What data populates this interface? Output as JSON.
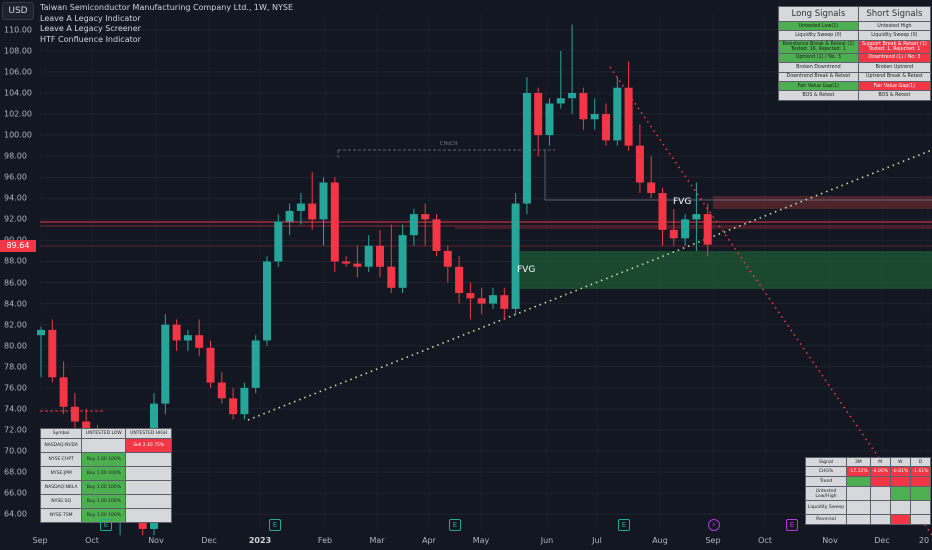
{
  "toolbar": {
    "currency": "USD"
  },
  "legend": {
    "title": "Taiwan Semiconductor Manufacturing Company Ltd., 1W, NYSE",
    "indicators": [
      "Leave A Legacy Indicator",
      "Leave A Legacy Screener",
      "HTF Confluence Indicator"
    ]
  },
  "price_axis": {
    "ticks": [
      "110.00",
      "108.00",
      "106.00",
      "104.00",
      "102.00",
      "100.00",
      "98.00",
      "96.00",
      "94.00",
      "92.00",
      "90.00",
      "88.00",
      "86.00",
      "84.00",
      "82.00",
      "80.00",
      "78.00",
      "76.00",
      "74.00",
      "72.00",
      "70.00",
      "68.00",
      "66.00",
      "64.00"
    ],
    "current_price": "89.64",
    "current_color": "#f23645"
  },
  "time_axis": {
    "labels": [
      "Sep",
      "Oct",
      "Nov",
      "Dec",
      "2023",
      "Feb",
      "Mar",
      "Apr",
      "May",
      "Jun",
      "Jul",
      "Aug",
      "Sep",
      "Oct",
      "Nov",
      "Dec",
      "20"
    ]
  },
  "annotations": {
    "fvg_upper": "FVG",
    "fvg_lower": "FVG",
    "level_note": "CHoCH"
  },
  "colors": {
    "up": "#26a69a",
    "down": "#f23645",
    "background": "#131722"
  },
  "events": [
    "E",
    "E",
    "E",
    "E",
    "E"
  ],
  "signals_table": {
    "headers": [
      "Long Signals",
      "Short Signals"
    ],
    "rows": [
      {
        "long": "Untested Low(1)",
        "long_state": "g",
        "short": "Untested High",
        "short_state": ""
      },
      {
        "long": "Liquidity Sweep (0)",
        "long_state": "",
        "short": "Liquidity Sweep (0)",
        "short_state": ""
      },
      {
        "long": "Resistance Break & Retest (2) Tested: 16, Rejected: 1",
        "long_state": "g",
        "short": "Support Break & Retest (1) Tested: 1, Rejected: 1",
        "short_state": "r"
      },
      {
        "long": "Uptrend (1) / No: 3",
        "long_state": "g",
        "short": "Downtrend (1) / No: 3",
        "short_state": "r"
      },
      {
        "long": "Broken Downtrend",
        "long_state": "",
        "short": "Broken Uptrend",
        "short_state": ""
      },
      {
        "long": "Downtrend Break & Retest",
        "long_state": "",
        "short": "Uptrend Break & Retest",
        "short_state": ""
      },
      {
        "long": "Fair Value Gap(1)",
        "long_state": "g",
        "short": "Fair Value Gap(1)",
        "short_state": "r"
      },
      {
        "long": "BOS & Retest",
        "long_state": "",
        "short": "BOS & Retest",
        "short_state": ""
      }
    ]
  },
  "screener_table": {
    "headers": [
      "Symbol",
      "UNTESTED LOW",
      "UNTESTED HIGH"
    ],
    "rows": [
      {
        "symbol": "NASDAQ:NVDA",
        "low": "",
        "low_state": "",
        "high": "Sell 2.40 75%",
        "high_state": "r"
      },
      {
        "symbol": "NYSE:CHPT",
        "low": "Buy 1.00 100%",
        "low_state": "g",
        "high": "",
        "high_state": ""
      },
      {
        "symbol": "NYSE:JPM",
        "low": "Buy 1.00 100%",
        "low_state": "g",
        "high": "",
        "high_state": ""
      },
      {
        "symbol": "NASDAQ:NKLA",
        "low": "Buy 1.00 100%",
        "low_state": "g",
        "high": "",
        "high_state": ""
      },
      {
        "symbol": "NYSE:SQ",
        "low": "Buy 1.00 100%",
        "low_state": "g",
        "high": "",
        "high_state": ""
      },
      {
        "symbol": "NYSE:TSM",
        "low": "Buy 1.00 100%",
        "low_state": "g",
        "high": "",
        "high_state": ""
      }
    ]
  },
  "htf_table": {
    "headers": [
      "Signal",
      "3M",
      "M",
      "W",
      "D"
    ],
    "rows": [
      {
        "label": "CHG%",
        "cells": [
          {
            "t": "-17.12%",
            "s": "r"
          },
          {
            "t": "-4.00%",
            "s": "r"
          },
          {
            "t": "-0.81%",
            "s": "r"
          },
          {
            "t": "-1.61%",
            "s": "r"
          }
        ]
      },
      {
        "label": "Trend",
        "cells": [
          {
            "t": "",
            "s": "g"
          },
          {
            "t": "",
            "s": "r"
          },
          {
            "t": "",
            "s": "r"
          },
          {
            "t": "",
            "s": "r"
          }
        ]
      },
      {
        "label": "Untested Low/High",
        "cells": [
          {
            "t": "",
            "s": ""
          },
          {
            "t": "",
            "s": ""
          },
          {
            "t": "",
            "s": "g"
          },
          {
            "t": "",
            "s": "g"
          }
        ]
      },
      {
        "label": "Liquidity Sweep",
        "cells": [
          {
            "t": "",
            "s": ""
          },
          {
            "t": "",
            "s": ""
          },
          {
            "t": "",
            "s": ""
          },
          {
            "t": "",
            "s": ""
          }
        ]
      },
      {
        "label": "Reversal",
        "cells": [
          {
            "t": "",
            "s": ""
          },
          {
            "t": "",
            "s": ""
          },
          {
            "t": "",
            "s": "r"
          },
          {
            "t": "",
            "s": ""
          }
        ]
      }
    ]
  },
  "chart_data": {
    "type": "candlestick",
    "title": "Taiwan Semiconductor Manufacturing Company Ltd., 1W, NYSE",
    "ylim": [
      62.5,
      111.5
    ],
    "candles": [
      [
        81.0,
        81.8,
        77.0,
        81.5
      ],
      [
        81.5,
        82.5,
        76.5,
        77.0
      ],
      [
        77.0,
        78.5,
        73.5,
        74.2
      ],
      [
        74.2,
        75.5,
        72.0,
        72.8
      ],
      [
        72.8,
        74.0,
        70.5,
        71.0
      ],
      [
        71.0,
        72.5,
        67.5,
        68.0
      ],
      [
        68.0,
        69.5,
        63.5,
        64.2
      ],
      [
        64.2,
        66.0,
        62.0,
        65.0
      ],
      [
        65.0,
        68.5,
        63.5,
        67.5
      ],
      [
        67.5,
        70.5,
        62.0,
        62.6
      ],
      [
        62.6,
        75.5,
        62.0,
        74.5
      ],
      [
        74.5,
        83.0,
        73.5,
        82.0
      ],
      [
        82.0,
        82.5,
        79.5,
        80.5
      ],
      [
        80.5,
        81.5,
        79.5,
        81.0
      ],
      [
        81.0,
        82.5,
        79.0,
        79.8
      ],
      [
        79.8,
        80.5,
        76.0,
        76.5
      ],
      [
        76.5,
        77.5,
        74.5,
        75.0
      ],
      [
        75.0,
        76.0,
        73.0,
        73.5
      ],
      [
        73.5,
        76.5,
        73.0,
        76.0
      ],
      [
        76.0,
        81.0,
        75.5,
        80.5
      ],
      [
        80.5,
        88.5,
        80.0,
        88.0
      ],
      [
        88.0,
        92.5,
        87.5,
        91.8
      ],
      [
        91.8,
        93.5,
        90.5,
        92.8
      ],
      [
        92.8,
        94.5,
        91.5,
        93.5
      ],
      [
        93.5,
        96.5,
        91.0,
        92.0
      ],
      [
        92.0,
        96.0,
        89.5,
        95.5
      ],
      [
        95.5,
        96.0,
        87.0,
        88.0
      ],
      [
        88.0,
        88.5,
        87.5,
        87.8
      ],
      [
        87.8,
        89.5,
        86.5,
        87.5
      ],
      [
        87.5,
        90.5,
        87.0,
        89.5
      ],
      [
        89.5,
        91.0,
        86.5,
        87.5
      ],
      [
        87.5,
        91.5,
        85.0,
        85.5
      ],
      [
        85.5,
        91.5,
        85.0,
        90.5
      ],
      [
        90.5,
        93.0,
        89.5,
        92.5
      ],
      [
        92.5,
        93.5,
        89.5,
        92.0
      ],
      [
        92.0,
        92.5,
        88.5,
        89.0
      ],
      [
        89.0,
        89.5,
        86.0,
        87.5
      ],
      [
        87.5,
        88.5,
        84.0,
        85.0
      ],
      [
        85.0,
        86.0,
        82.5,
        84.5
      ],
      [
        84.5,
        85.5,
        83.0,
        84.0
      ],
      [
        84.0,
        85.5,
        83.5,
        84.8
      ],
      [
        84.8,
        85.5,
        82.5,
        83.5
      ],
      [
        83.5,
        94.5,
        83.0,
        93.5
      ],
      [
        93.5,
        105.5,
        92.5,
        104.0
      ],
      [
        104.0,
        104.5,
        98.0,
        100.0
      ],
      [
        100.0,
        103.5,
        99.0,
        103.0
      ],
      [
        103.0,
        108.0,
        102.5,
        103.5
      ],
      [
        103.5,
        110.5,
        102.0,
        104.0
      ],
      [
        104.0,
        104.5,
        100.5,
        101.5
      ],
      [
        101.5,
        103.5,
        100.5,
        102.0
      ],
      [
        102.0,
        103.0,
        99.0,
        99.5
      ],
      [
        99.5,
        105.5,
        99.0,
        104.5
      ],
      [
        104.5,
        107.0,
        98.5,
        99.0
      ],
      [
        99.0,
        101.0,
        94.5,
        95.5
      ],
      [
        95.5,
        98.0,
        94.0,
        94.5
      ],
      [
        94.5,
        95.0,
        89.5,
        91.0
      ],
      [
        91.0,
        93.0,
        89.5,
        90.2
      ],
      [
        90.2,
        92.5,
        89.5,
        92.0
      ],
      [
        92.0,
        95.5,
        89.0,
        92.5
      ],
      [
        92.5,
        93.5,
        88.5,
        89.6
      ]
    ]
  }
}
